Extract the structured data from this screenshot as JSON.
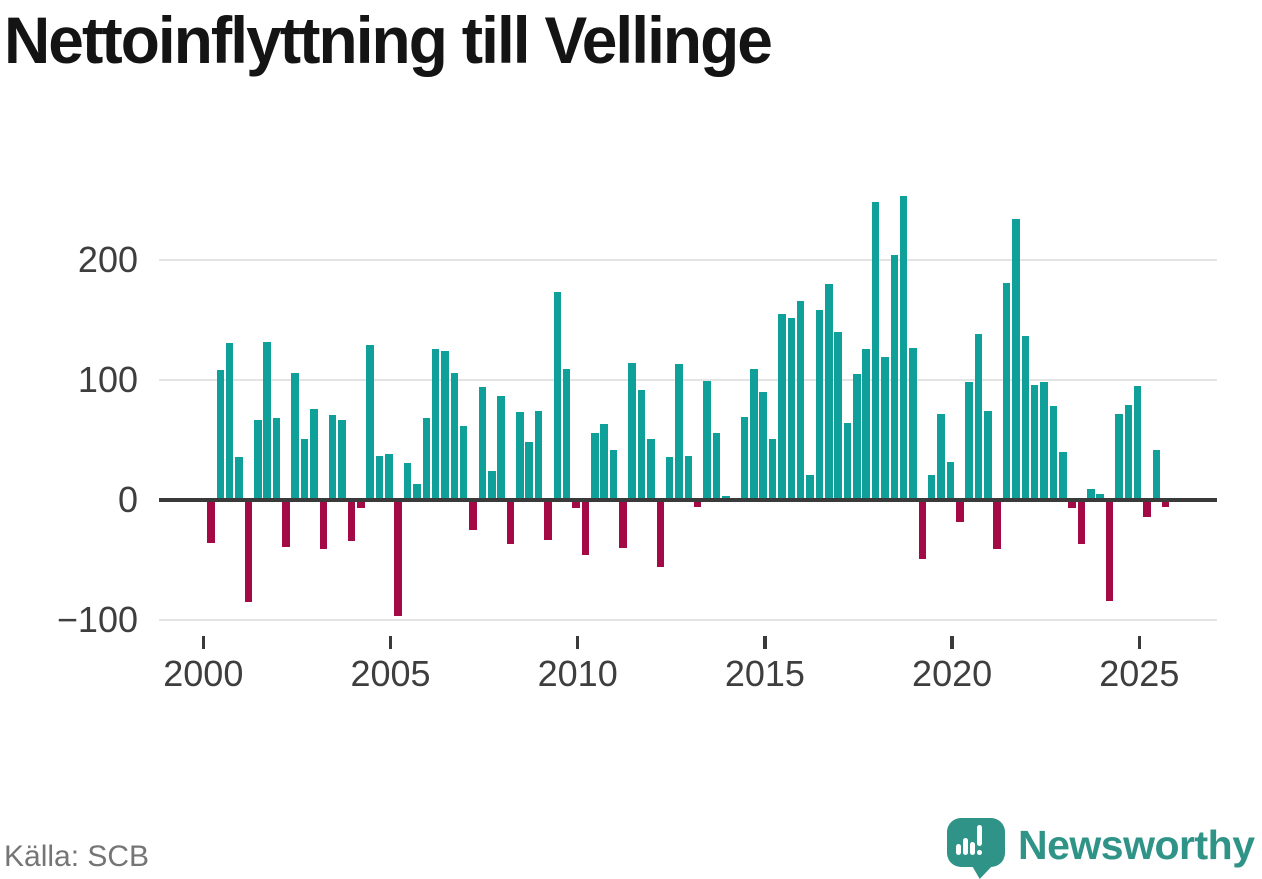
{
  "title": "Nettoinflyttning till Vellinge",
  "source": "Källa: SCB",
  "branding": {
    "logo_text": "Newsworthy",
    "logo_color": "#2f9487"
  },
  "colors": {
    "positive_bar": "#10a09a",
    "negative_bar": "#a40a45",
    "grid": "#e4e4e4",
    "zero_line": "#3a3a3a",
    "axis_text": "#3e3e3e",
    "title_text": "#141414",
    "source_text": "#757575"
  },
  "chart_data": {
    "type": "bar",
    "title": "Nettoinflyttning till Vellinge",
    "xlabel": "",
    "ylabel": "",
    "frequency": "quarterly",
    "start_year": 2000,
    "start_quarter": 1,
    "values": [
      -36,
      108,
      131,
      36,
      -85,
      67,
      132,
      68,
      -39,
      106,
      51,
      76,
      -41,
      71,
      67,
      -34,
      -7,
      129,
      37,
      38,
      -97,
      31,
      13,
      68,
      126,
      124,
      106,
      62,
      -25,
      94,
      24,
      87,
      -37,
      73,
      48,
      74,
      -33,
      173,
      109,
      -7,
      -46,
      56,
      63,
      42,
      -40,
      114,
      92,
      51,
      -56,
      36,
      113,
      37,
      -6,
      99,
      56,
      3,
      0,
      69,
      109,
      90,
      51,
      155,
      152,
      166,
      21,
      158,
      180,
      140,
      64,
      105,
      126,
      248,
      119,
      204,
      253,
      127,
      -49,
      21,
      72,
      32,
      -18,
      98,
      138,
      74,
      -41,
      181,
      234,
      137,
      96,
      98,
      78,
      40,
      -7,
      -37,
      9,
      5,
      -84,
      72,
      79,
      95,
      -14,
      42,
      -6
    ],
    "xticks": [
      2000,
      2005,
      2010,
      2015,
      2020,
      2025
    ],
    "yticks": [
      200,
      100,
      0,
      -100
    ],
    "ylim": [
      -115,
      270
    ],
    "grid": true,
    "legend": "none",
    "positive_color": "#10a09a",
    "negative_color": "#a40a45",
    "source": "Källa: SCB"
  }
}
